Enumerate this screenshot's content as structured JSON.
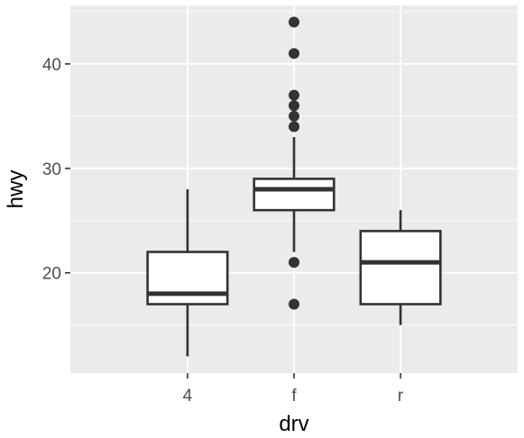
{
  "chart_data": {
    "type": "boxplot",
    "xlabel": "drv",
    "ylabel": "hwy",
    "categories": [
      "4",
      "f",
      "r"
    ],
    "yticks": [
      20,
      30,
      40
    ],
    "ylim": [
      10.4,
      45.6
    ],
    "grid": true,
    "boxes": [
      {
        "category": "4",
        "whisker_low": 12,
        "q1": 17,
        "median": 18,
        "q3": 22,
        "whisker_high": 28,
        "outliers": []
      },
      {
        "category": "f",
        "whisker_low": 22,
        "q1": 26,
        "median": 28,
        "q3": 29,
        "whisker_high": 33,
        "outliers": [
          17,
          21,
          34,
          35,
          36,
          37,
          41,
          44
        ]
      },
      {
        "category": "r",
        "whisker_low": 15,
        "q1": 17,
        "median": 21,
        "q3": 24,
        "whisker_high": 26,
        "outliers": []
      }
    ],
    "colors": {
      "panel_background": "#ebebeb",
      "grid_line": "#ffffff",
      "box_fill": "#ffffff",
      "box_stroke": "#333333",
      "point": "#333333",
      "tick_label": "#4d4d4d",
      "tick_mark": "#333333",
      "axis_title": "#000000"
    }
  }
}
